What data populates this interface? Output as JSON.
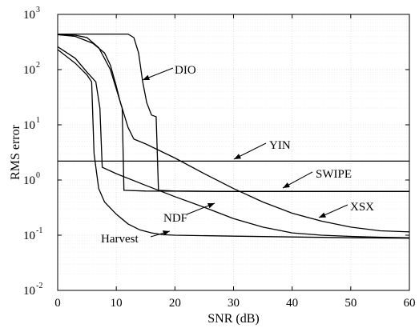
{
  "chart_data": {
    "type": "line",
    "xlabel": "SNR (dB)",
    "ylabel": "RMS error",
    "xlim": [
      0,
      60
    ],
    "ylim": [
      0.01,
      1000
    ],
    "yscale": "log",
    "grid": true,
    "x_ticks": [
      {
        "value": 0,
        "label": "0"
      },
      {
        "value": 10,
        "label": "10"
      },
      {
        "value": 20,
        "label": "20"
      },
      {
        "value": 30,
        "label": "30"
      },
      {
        "value": 40,
        "label": "40"
      },
      {
        "value": 50,
        "label": "50"
      },
      {
        "value": 60,
        "label": "60"
      }
    ],
    "y_ticks": [
      {
        "value": 0.01,
        "base": "10",
        "exp": "-2"
      },
      {
        "value": 0.1,
        "base": "10",
        "exp": "-1"
      },
      {
        "value": 1,
        "base": "10",
        "exp": "0"
      },
      {
        "value": 10,
        "base": "10",
        "exp": "1"
      },
      {
        "value": 100,
        "base": "10",
        "exp": "2"
      },
      {
        "value": 1000,
        "base": "10",
        "exp": "3"
      }
    ],
    "series": [
      {
        "name": "DIO",
        "points": [
          [
            0,
            440
          ],
          [
            6,
            440
          ],
          [
            12,
            440
          ],
          [
            13,
            380
          ],
          [
            13.8,
            200
          ],
          [
            14.5,
            60
          ],
          [
            15.2,
            25
          ],
          [
            16,
            15
          ],
          [
            16.8,
            14
          ],
          [
            17.2,
            0.65
          ],
          [
            20,
            0.63
          ],
          [
            30,
            0.62
          ],
          [
            40,
            0.62
          ],
          [
            50,
            0.62
          ],
          [
            60,
            0.62
          ]
        ]
      },
      {
        "name": "YIN",
        "points": [
          [
            0,
            2.2
          ],
          [
            60,
            2.2
          ]
        ]
      },
      {
        "name": "SWIPE",
        "points": [
          [
            0,
            430
          ],
          [
            3,
            400
          ],
          [
            6,
            300
          ],
          [
            8,
            200
          ],
          [
            9,
            120
          ],
          [
            10,
            50
          ],
          [
            10.7,
            25
          ],
          [
            11,
            20
          ],
          [
            11.3,
            0.65
          ],
          [
            15,
            0.63
          ],
          [
            30,
            0.62
          ],
          [
            60,
            0.62
          ]
        ]
      },
      {
        "name": "XSX",
        "points": [
          [
            0,
            430
          ],
          [
            3,
            420
          ],
          [
            5,
            380
          ],
          [
            7,
            250
          ],
          [
            9,
            100
          ],
          [
            11,
            20
          ],
          [
            12,
            9
          ],
          [
            13,
            5.5
          ],
          [
            15,
            4.5
          ],
          [
            20,
            2.5
          ],
          [
            25,
            1.3
          ],
          [
            30,
            0.7
          ],
          [
            35,
            0.4
          ],
          [
            40,
            0.25
          ],
          [
            45,
            0.18
          ],
          [
            50,
            0.14
          ],
          [
            55,
            0.12
          ],
          [
            60,
            0.115
          ]
        ]
      },
      {
        "name": "NDF",
        "points": [
          [
            0,
            260
          ],
          [
            3,
            160
          ],
          [
            5,
            90
          ],
          [
            6.5,
            60
          ],
          [
            7.2,
            20
          ],
          [
            7.6,
            1.7
          ],
          [
            10,
            1.3
          ],
          [
            15,
            0.8
          ],
          [
            20,
            0.5
          ],
          [
            25,
            0.32
          ],
          [
            30,
            0.2
          ],
          [
            35,
            0.14
          ],
          [
            40,
            0.11
          ],
          [
            45,
            0.1
          ],
          [
            50,
            0.095
          ],
          [
            55,
            0.092
          ],
          [
            60,
            0.09
          ]
        ]
      },
      {
        "name": "Harvest",
        "points": [
          [
            0,
            230
          ],
          [
            3,
            130
          ],
          [
            5,
            80
          ],
          [
            5.8,
            60
          ],
          [
            6.2,
            3
          ],
          [
            7,
            0.7
          ],
          [
            8,
            0.4
          ],
          [
            10,
            0.24
          ],
          [
            12,
            0.16
          ],
          [
            14,
            0.125
          ],
          [
            16,
            0.11
          ],
          [
            18,
            0.102
          ],
          [
            20,
            0.1
          ],
          [
            30,
            0.096
          ],
          [
            40,
            0.093
          ],
          [
            50,
            0.09
          ],
          [
            60,
            0.088
          ]
        ]
      }
    ],
    "annotations": [
      {
        "text": "DIO",
        "series": "DIO"
      },
      {
        "text": "YIN",
        "series": "YIN"
      },
      {
        "text": "SWIPE",
        "series": "SWIPE"
      },
      {
        "text": "XSX",
        "series": "XSX"
      },
      {
        "text": "NDF",
        "series": "NDF"
      },
      {
        "text": "Harvest",
        "series": "Harvest"
      }
    ]
  }
}
